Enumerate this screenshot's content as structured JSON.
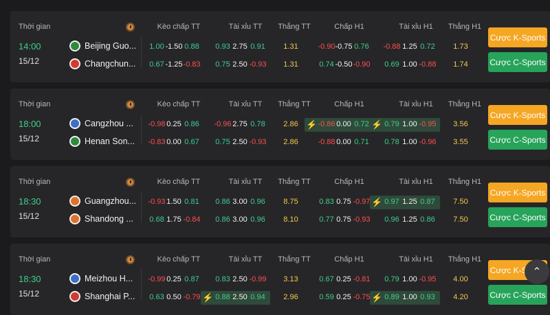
{
  "labels": {
    "time": "Thời gian",
    "hdr_keo": "Kèo chấp TT",
    "hdr_taixiu": "Tài xỉu TT",
    "hdr_thang": "Thắng TT",
    "hdr_chap_h1": "Chấp H1",
    "hdr_taixiu_h1": "Tài xỉu H1",
    "hdr_thang_h1": "Thắng H1",
    "btn_k": "Cược K-Sports",
    "btn_c": "Cược C-Sports"
  },
  "matches": [
    {
      "hour": "14:00",
      "date": "15/12",
      "home": {
        "name": "Beijing Guo...",
        "color": "#2e8b3e"
      },
      "away": {
        "name": "Changchun...",
        "color": "#d23b2e"
      },
      "rows": [
        {
          "k1": "1.00",
          "k2": "-1.50",
          "k3": "0.88",
          "t1": "0.93",
          "t2": "2.75",
          "t3": "0.91",
          "w": "1.31",
          "c1": "-0.90",
          "c2": "-0.75",
          "c3": "0.76",
          "h1": "-0.88",
          "h2": "1.25",
          "h3": "0.72",
          "wh": "1.73"
        },
        {
          "k1": "0.67",
          "k2": "-1.25",
          "k3": "-0.83",
          "t1": "0.75",
          "t2": "2.50",
          "t3": "-0.93",
          "w": "1.31",
          "c1": "0.74",
          "c2": "-0.50",
          "c3": "-0.90",
          "h1": "0.69",
          "h2": "1.00",
          "h3": "-0.88",
          "wh": "1.74"
        }
      ]
    },
    {
      "hour": "18:00",
      "date": "15/12",
      "home": {
        "name": "Cangzhou ...",
        "color": "#3b6fc9"
      },
      "away": {
        "name": "Henan Son...",
        "color": "#2e8b3e"
      },
      "rows": [
        {
          "k1": "-0.98",
          "k2": "0.25",
          "k3": "0.86",
          "t1": "-0.96",
          "t2": "2.75",
          "t3": "0.78",
          "w": "2.86",
          "c1": "-0.86",
          "c2": "0.00",
          "c3": "0.72",
          "h1": "0.79",
          "h2": "1.00",
          "h3": "-0.95",
          "wh": "3.56"
        },
        {
          "k1": "-0.83",
          "k2": "0.00",
          "k3": "0.67",
          "t1": "0.75",
          "t2": "2.50",
          "t3": "-0.93",
          "w": "2.86",
          "c1": "-0.88",
          "c2": "0.00",
          "c3": "0.71",
          "h1": "0.78",
          "h2": "1.00",
          "h3": "-0.96",
          "wh": "3.55"
        }
      ]
    },
    {
      "hour": "18:30",
      "date": "15/12",
      "home": {
        "name": "Guangzhou...",
        "color": "#e0702a"
      },
      "away": {
        "name": "Shandong ...",
        "color": "#e0702a"
      },
      "rows": [
        {
          "k1": "-0.93",
          "k2": "1.50",
          "k3": "0.81",
          "t1": "0.86",
          "t2": "3.00",
          "t3": "0.96",
          "w": "8.75",
          "c1": "0.83",
          "c2": "0.75",
          "c3": "-0.97",
          "h1": "0.97",
          "h2": "1.25",
          "h3": "0.87",
          "wh": "7.50"
        },
        {
          "k1": "0.68",
          "k2": "1.75",
          "k3": "-0.84",
          "t1": "0.86",
          "t2": "3.00",
          "t3": "0.96",
          "w": "8.10",
          "c1": "0.77",
          "c2": "0.75",
          "c3": "-0.93",
          "h1": "0.96",
          "h2": "1.25",
          "h3": "0.86",
          "wh": "7.50"
        }
      ]
    },
    {
      "hour": "18:30",
      "date": "15/12",
      "home": {
        "name": "Meizhou H...",
        "color": "#3b6fc9"
      },
      "away": {
        "name": "Shanghai P...",
        "color": "#d23b2e"
      },
      "rows": [
        {
          "k1": "-0.99",
          "k2": "0.25",
          "k3": "0.87",
          "t1": "0.83",
          "t2": "2.50",
          "t3": "-0.99",
          "w": "3.13",
          "c1": "0.67",
          "c2": "0.25",
          "c3": "-0.81",
          "h1": "0.79",
          "h2": "1.00",
          "h3": "-0.95",
          "wh": "4.00"
        },
        {
          "k1": "0.63",
          "k2": "0.50",
          "k3": "-0.79",
          "t1": "0.88",
          "t2": "2.50",
          "t3": "0.94",
          "w": "2.96",
          "c1": "0.59",
          "c2": "0.25",
          "c3": "-0.75",
          "h1": "0.89",
          "h2": "1.00",
          "h3": "0.93",
          "wh": "4.20"
        }
      ]
    }
  ],
  "scroll_top_icon": "chevron-up-icon"
}
